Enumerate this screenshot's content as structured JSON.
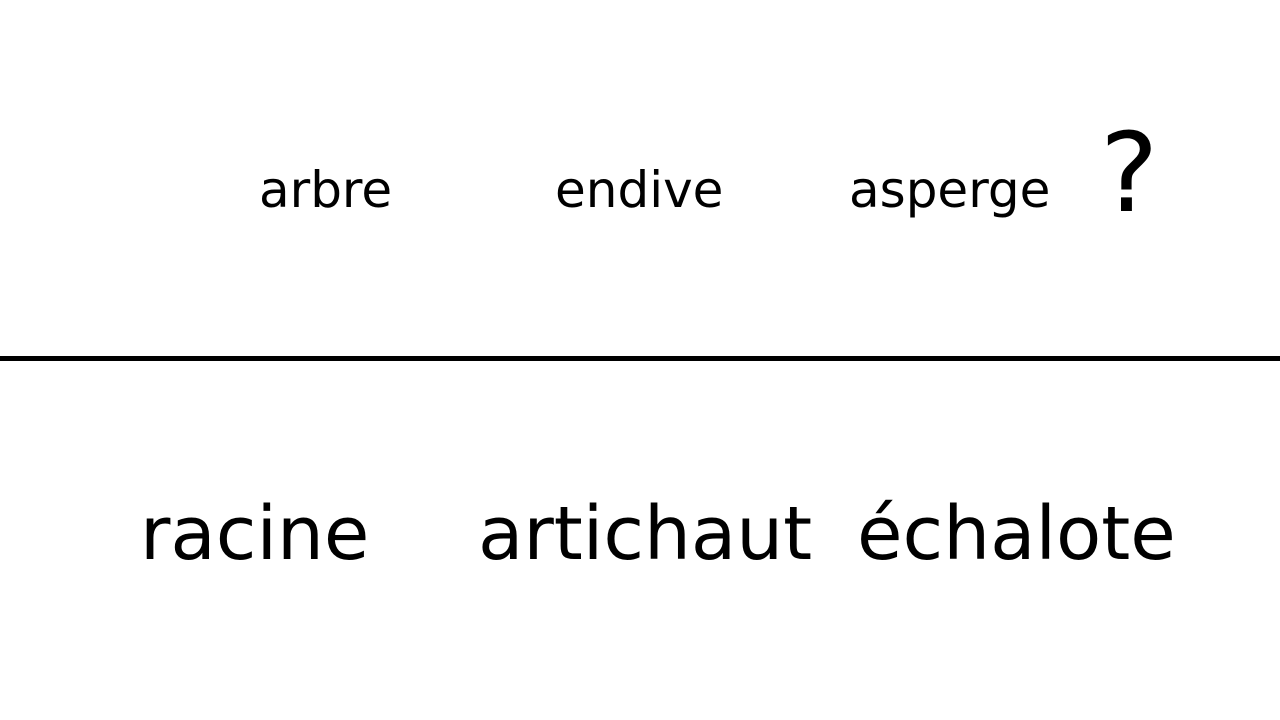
{
  "prompt": {
    "words": [
      "arbre",
      "endive",
      "asperge"
    ],
    "question_mark": "?"
  },
  "options": {
    "words": [
      "racine",
      "artichaut",
      "échalote"
    ]
  },
  "colors": {
    "background": "#ffffff",
    "text": "#000000",
    "divider": "#000000"
  }
}
